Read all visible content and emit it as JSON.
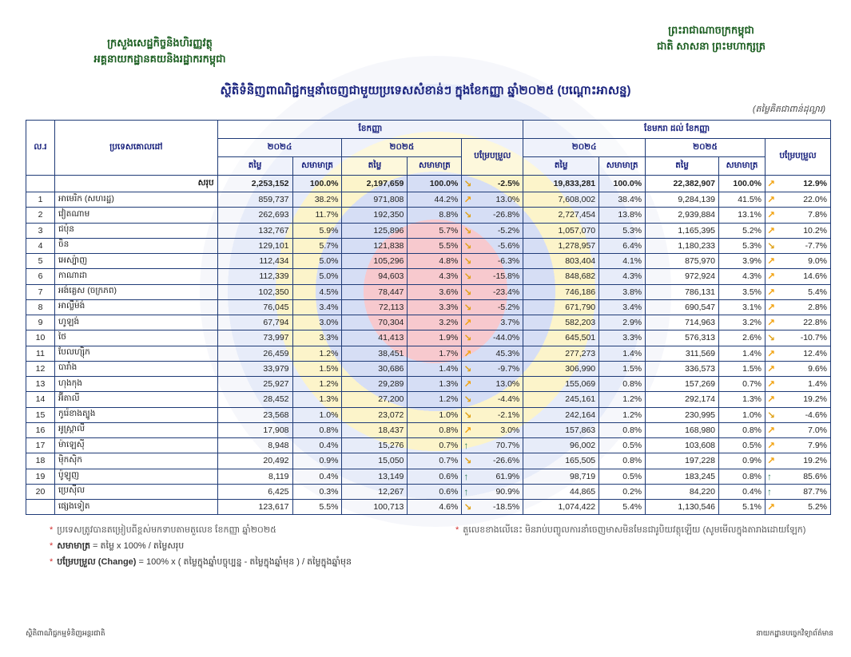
{
  "header": {
    "ministry": "ក្រសួងសេដ្ឋកិច្ចនិងហិរញ្ញវត្ថុ",
    "department": "អគ្គនាយកដ្ឋានគយនិងរដ្ឋាករកម្ពុជា",
    "kingdom": "ព្រះរាជាណាចក្រកម្ពុជា",
    "motto": "ជាតិ សាសនា ព្រះមហាក្សត្រ"
  },
  "title": "ស្ថិតិទំនិញពាណិជ្ជកម្មនាំចេញជាមួយប្រទេសសំខាន់ៗ ក្នុងខែកញ្ញា ឆ្នាំ២០២៥ (បណ្ដោះអាសន្ន)",
  "unit": "(តម្លៃគិតជាពាន់ដុល្លារ)",
  "table": {
    "headers": {
      "no": "ល.រ",
      "country": "ប្រទេសគោលដៅ",
      "month": "ខែកញ្ញា",
      "ytd": "ខែមករា ដល់ ខែកញ្ញា",
      "y2024": "២០២៤",
      "y2025": "២០២៥",
      "change": "បម្រែបម្រួល",
      "value": "តម្លៃ",
      "share": "សមាមាត្រ"
    },
    "total": {
      "label": "សរុប",
      "m24": "2,253,152",
      "m24s": "100.0%",
      "m25": "2,197,659",
      "m25s": "100.0%",
      "mch": "-2.5%",
      "mi": "down-right-arrow-icon",
      "y24": "19,833,281",
      "y24s": "100.0%",
      "y25": "22,382,907",
      "y25s": "100.0%",
      "ych": "12.9%",
      "yi": "up-right-arrow-icon"
    },
    "rows": [
      [
        "1",
        "អាមេរិក (សហរដ្ឋ)",
        "859,737",
        "38.2%",
        "971,808",
        "44.2%",
        "13.0%",
        "7,608,002",
        "38.4%",
        "9,284,139",
        "41.5%",
        "22.0%"
      ],
      [
        "2",
        "វៀតណាម",
        "262,693",
        "11.7%",
        "192,350",
        "8.8%",
        "-26.8%",
        "2,727,454",
        "13.8%",
        "2,939,884",
        "13.1%",
        "7.8%"
      ],
      [
        "3",
        "ជប៉ុន",
        "132,767",
        "5.9%",
        "125,896",
        "5.7%",
        "-5.2%",
        "1,057,070",
        "5.3%",
        "1,165,395",
        "5.2%",
        "10.2%"
      ],
      [
        "4",
        "ចិន",
        "129,101",
        "5.7%",
        "121,838",
        "5.5%",
        "-5.6%",
        "1,278,957",
        "6.4%",
        "1,180,233",
        "5.3%",
        "-7.7%"
      ],
      [
        "5",
        "អេស្ប៉ាញ",
        "112,434",
        "5.0%",
        "105,296",
        "4.8%",
        "-6.3%",
        "803,404",
        "4.1%",
        "875,970",
        "3.9%",
        "9.0%"
      ],
      [
        "6",
        "កាណាដា",
        "112,339",
        "5.0%",
        "94,603",
        "4.3%",
        "-15.8%",
        "848,682",
        "4.3%",
        "972,924",
        "4.3%",
        "14.6%"
      ],
      [
        "7",
        "អង់គ្លេស (ចក្រភព)",
        "102,350",
        "4.5%",
        "78,447",
        "3.6%",
        "-23.4%",
        "746,186",
        "3.8%",
        "786,131",
        "3.5%",
        "5.4%"
      ],
      [
        "8",
        "អាល្លឺម៉ង់",
        "76,045",
        "3.4%",
        "72,113",
        "3.3%",
        "-5.2%",
        "671,790",
        "3.4%",
        "690,547",
        "3.1%",
        "2.8%"
      ],
      [
        "9",
        "ហូឡង់",
        "67,794",
        "3.0%",
        "70,304",
        "3.2%",
        "3.7%",
        "582,203",
        "2.9%",
        "714,963",
        "3.2%",
        "22.8%"
      ],
      [
        "10",
        "ថៃ",
        "73,997",
        "3.3%",
        "41,413",
        "1.9%",
        "-44.0%",
        "645,501",
        "3.3%",
        "576,313",
        "2.6%",
        "-10.7%"
      ],
      [
        "11",
        "បែលហ្ស៊ិក",
        "26,459",
        "1.2%",
        "38,451",
        "1.7%",
        "45.3%",
        "277,273",
        "1.4%",
        "311,569",
        "1.4%",
        "12.4%"
      ],
      [
        "12",
        "បារាំង",
        "33,979",
        "1.5%",
        "30,686",
        "1.4%",
        "-9.7%",
        "306,990",
        "1.5%",
        "336,573",
        "1.5%",
        "9.6%"
      ],
      [
        "13",
        "ហុងកុង",
        "25,927",
        "1.2%",
        "29,289",
        "1.3%",
        "13.0%",
        "155,069",
        "0.8%",
        "157,269",
        "0.7%",
        "1.4%"
      ],
      [
        "14",
        "អ៊ីតាលី",
        "28,452",
        "1.3%",
        "27,200",
        "1.2%",
        "-4.4%",
        "245,161",
        "1.2%",
        "292,174",
        "1.3%",
        "19.2%"
      ],
      [
        "15",
        "កូរ៉េខាងត្បូង",
        "23,568",
        "1.0%",
        "23,072",
        "1.0%",
        "-2.1%",
        "242,164",
        "1.2%",
        "230,995",
        "1.0%",
        "-4.6%"
      ],
      [
        "16",
        "អូស្ត្រាលី",
        "17,908",
        "0.8%",
        "18,437",
        "0.8%",
        "3.0%",
        "157,863",
        "0.8%",
        "168,980",
        "0.8%",
        "7.0%"
      ],
      [
        "17",
        "ម៉ាឡេស៊ី",
        "8,948",
        "0.4%",
        "15,276",
        "0.7%",
        "70.7%",
        "96,002",
        "0.5%",
        "103,608",
        "0.5%",
        "7.9%"
      ],
      [
        "18",
        "ម៉ិកស៊ិក",
        "20,492",
        "0.9%",
        "15,050",
        "0.7%",
        "-26.6%",
        "165,505",
        "0.8%",
        "197,228",
        "0.9%",
        "19.2%"
      ],
      [
        "19",
        "ប៉ូឡូញ",
        "8,119",
        "0.4%",
        "13,149",
        "0.6%",
        "61.9%",
        "98,719",
        "0.5%",
        "183,245",
        "0.8%",
        "85.6%"
      ],
      [
        "20",
        "ប្រេស៊ីល",
        "6,425",
        "0.3%",
        "12,267",
        "0.6%",
        "90.9%",
        "44,865",
        "0.2%",
        "84,220",
        "0.4%",
        "87.7%"
      ],
      [
        "",
        "ផ្សេងទៀត",
        "123,617",
        "5.5%",
        "100,713",
        "4.6%",
        "-18.5%",
        "1,074,422",
        "5.4%",
        "1,130,546",
        "5.1%",
        "5.2%"
      ]
    ]
  },
  "notes": {
    "n1": "ប្រទេសត្រូវបានតម្រៀបពីខ្ពស់មកទាបតាមតួលេខ ខែកញ្ញា ឆ្នាំ២០២៥",
    "n2_term": "សមាមាត្រ",
    "n2_def": "= តម្លៃ x 100% / តម្លៃសរុប",
    "n3_term": "បម្រែបម្រួល (Change)",
    "n3_def": "= 100% x ( តម្លៃក្នុងឆ្នាំបច្ចុប្បន្ន - តម្លៃក្នុងឆ្នាំមុន ) / តម្លៃក្នុងឆ្នាំមុន",
    "n4": "តួលេខខាងលើនេះ មិនរាប់បញ្ចូលការនាំចេញមាសមិនមែនជារូបិយវត្ថុឡើយ (សូមមើលក្នុងតារាងដោយឡែក)"
  },
  "footer": {
    "left": "ស្ថិតិពាណិជ្ជកម្មទំនិញអន្តរជាតិ",
    "right": "នាយកដ្ឋានបច្ចេកវិទ្យាព័ត៌មាន"
  }
}
